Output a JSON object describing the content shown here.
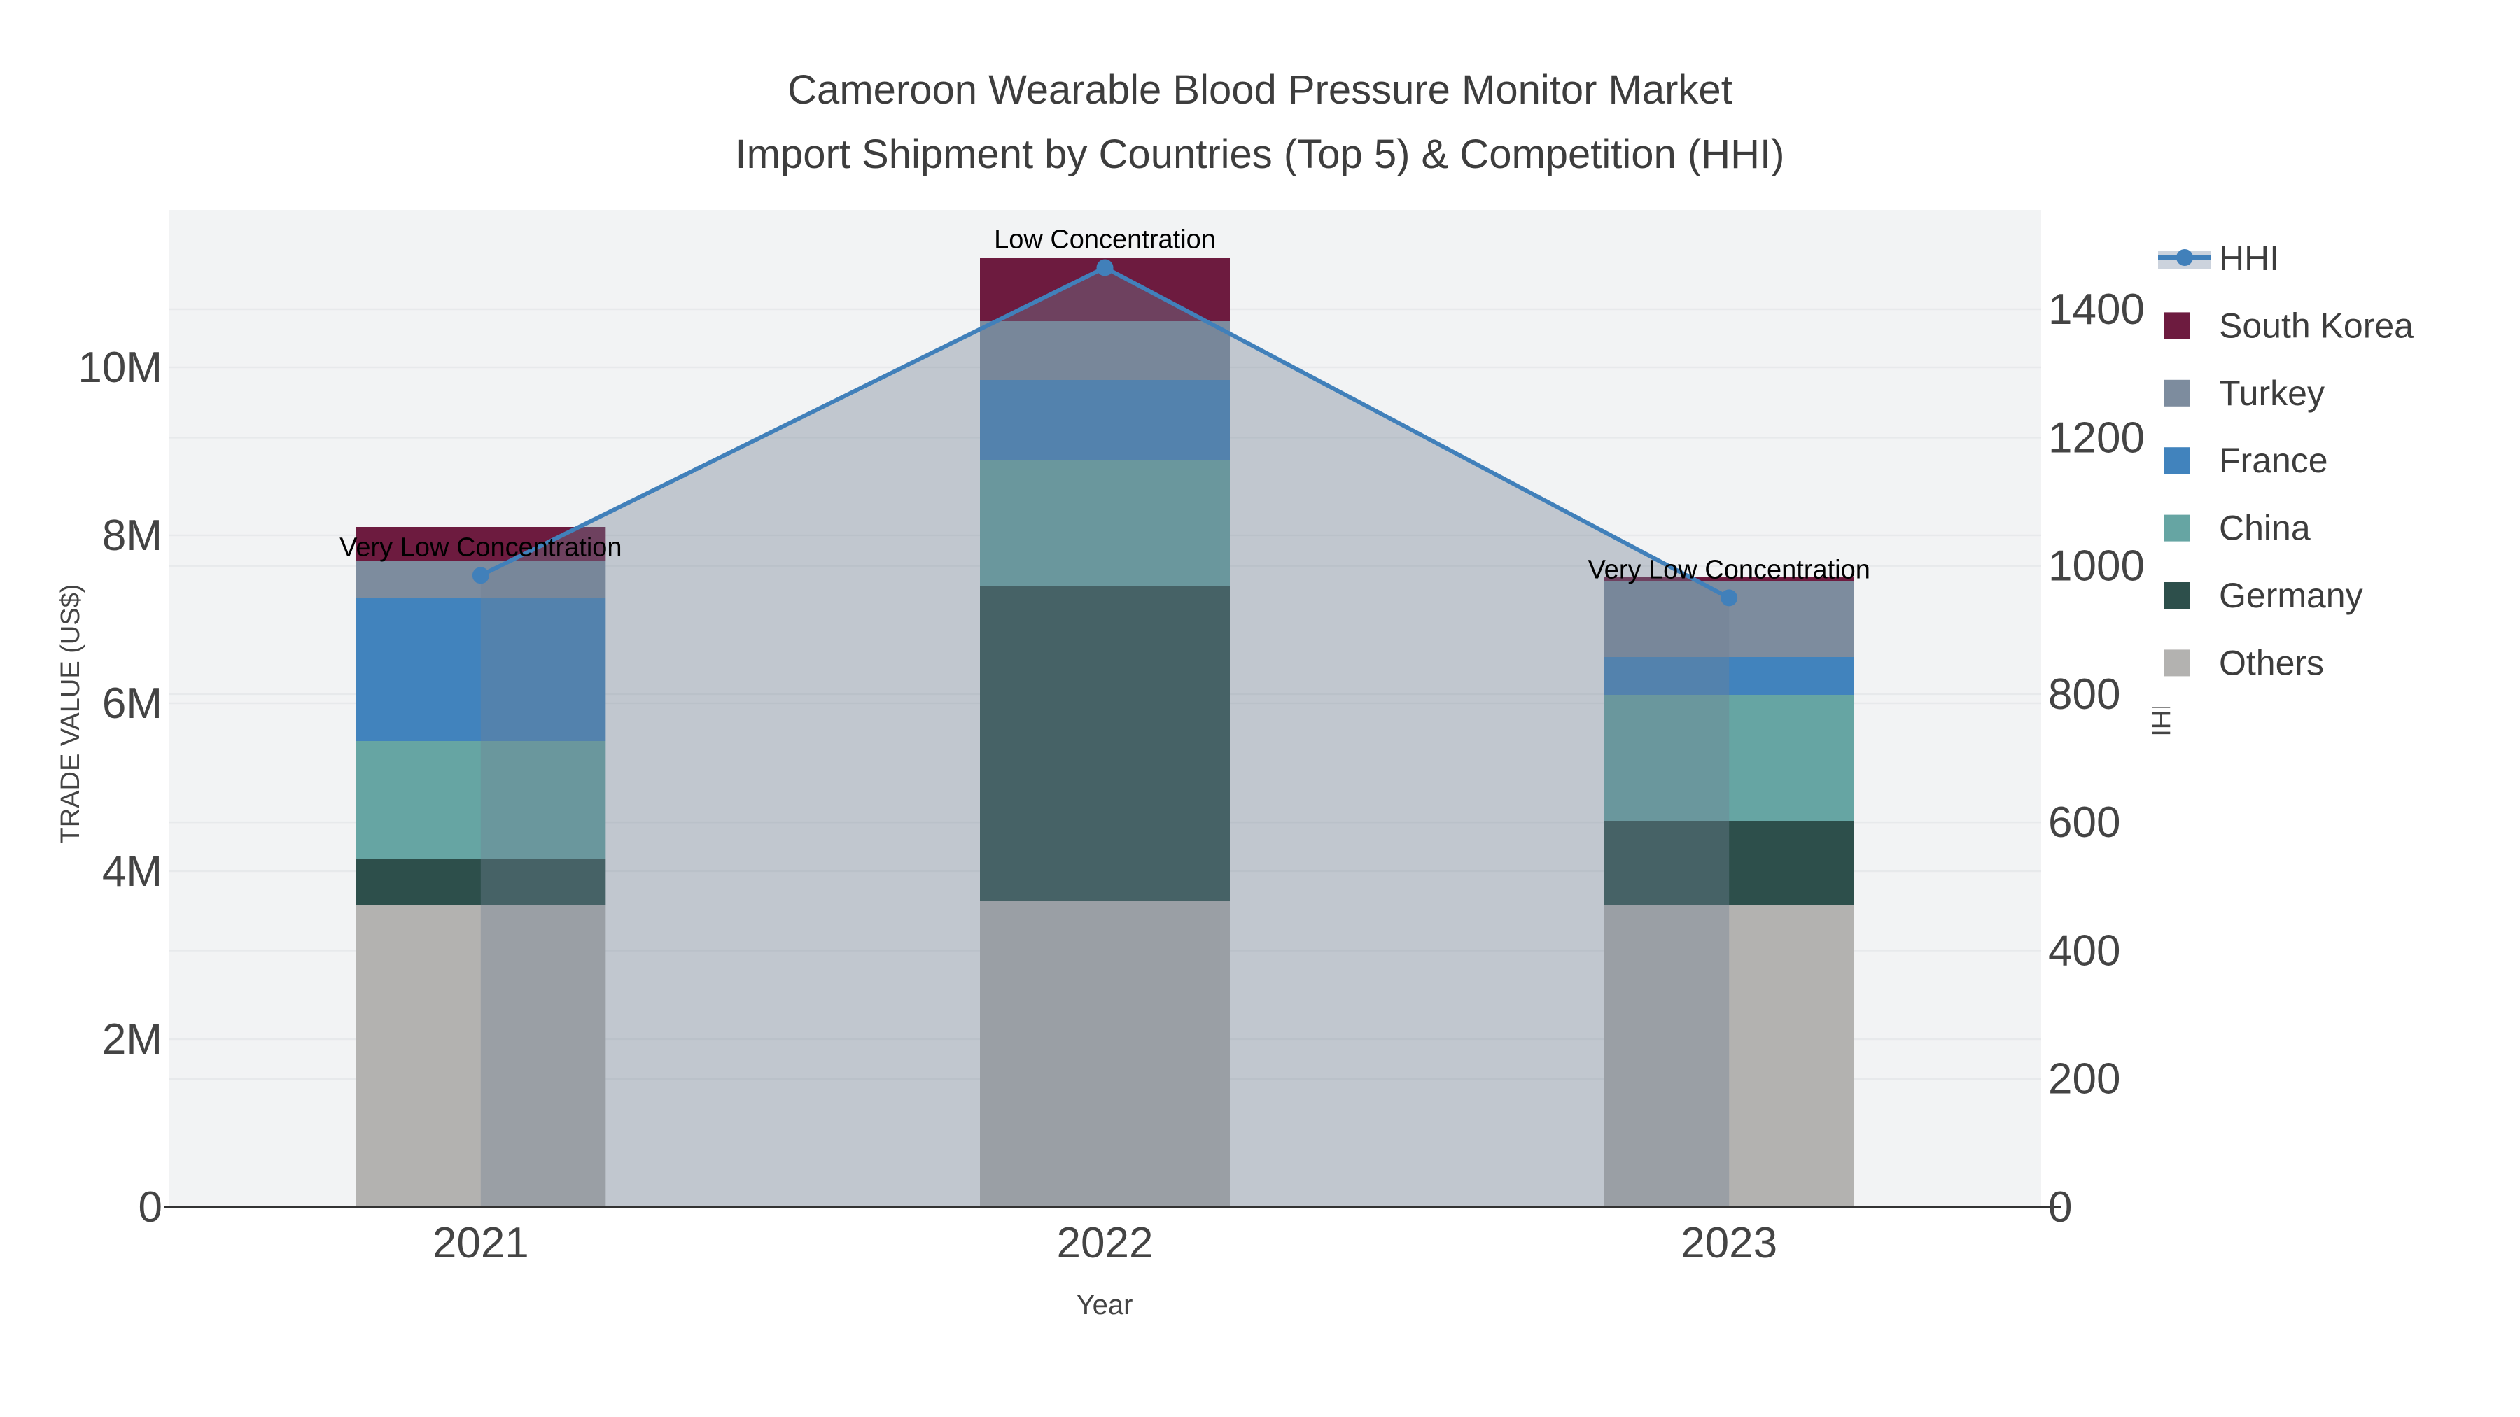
{
  "title": {
    "line1": "Cameroon Wearable Blood Pressure Monitor Market",
    "line2": "Import Shipment by Countries (Top 5) & Competition (HHI)"
  },
  "axes": {
    "x": {
      "title": "Year",
      "categories": [
        "2021",
        "2022",
        "2023"
      ]
    },
    "y_left": {
      "title": "TRADE VALUE (US$)",
      "unit": "M US$",
      "range": [
        0,
        11.875
      ],
      "ticks": [
        {
          "value": 0,
          "label": "0"
        },
        {
          "value": 2,
          "label": "2M"
        },
        {
          "value": 4,
          "label": "4M"
        },
        {
          "value": 6,
          "label": "6M"
        },
        {
          "value": 8,
          "label": "8M"
        },
        {
          "value": 10,
          "label": "10M"
        }
      ]
    },
    "y_right": {
      "title": "HHI",
      "range": [
        0,
        1555
      ],
      "ticks": [
        {
          "value": 0,
          "label": "0"
        },
        {
          "value": 200,
          "label": "200"
        },
        {
          "value": 400,
          "label": "400"
        },
        {
          "value": 600,
          "label": "600"
        },
        {
          "value": 800,
          "label": "800"
        },
        {
          "value": 1000,
          "label": "1000"
        },
        {
          "value": 1200,
          "label": "1200"
        },
        {
          "value": 1400,
          "label": "1400"
        }
      ]
    }
  },
  "chart_data": {
    "type": "stacked-bar-with-line",
    "categories": [
      "2021",
      "2022",
      "2023"
    ],
    "series": [
      {
        "name": "South Korea",
        "color": "#6d1b3f",
        "values": [
          0.4,
          0.75,
          0.05
        ]
      },
      {
        "name": "Turkey",
        "color": "#7d8c9e",
        "values": [
          0.45,
          0.7,
          0.9
        ]
      },
      {
        "name": "France",
        "color": "#4183bd",
        "values": [
          1.7,
          0.95,
          0.45
        ]
      },
      {
        "name": "China",
        "color": "#66a5a3",
        "values": [
          1.4,
          1.5,
          1.5
        ]
      },
      {
        "name": "Germany",
        "color": "#2d4f4b",
        "values": [
          0.55,
          3.75,
          1.0
        ]
      },
      {
        "name": "Others",
        "color": "#b3b2b0",
        "values": [
          3.6,
          3.65,
          3.6
        ]
      }
    ],
    "totals": [
      8.1,
      11.3,
      7.5
    ],
    "hhi": {
      "name": "HHI",
      "values": [
        985,
        1465,
        950
      ],
      "line_color": "#4180ba",
      "fill_color": "rgba(112,128,148,0.38)",
      "legend_band_color": "#ccd3dd",
      "annotations": [
        "Very Low Concentration",
        "Low Concentration",
        "Very Low Concentration"
      ]
    },
    "legend_position": "right",
    "grid": true,
    "plot_bg": "#f2f3f4",
    "grid_color": "#e7e9eb",
    "axis_line_color": "#333333"
  },
  "legend": {
    "items": [
      "HHI",
      "South Korea",
      "Turkey",
      "France",
      "China",
      "Germany",
      "Others"
    ]
  }
}
